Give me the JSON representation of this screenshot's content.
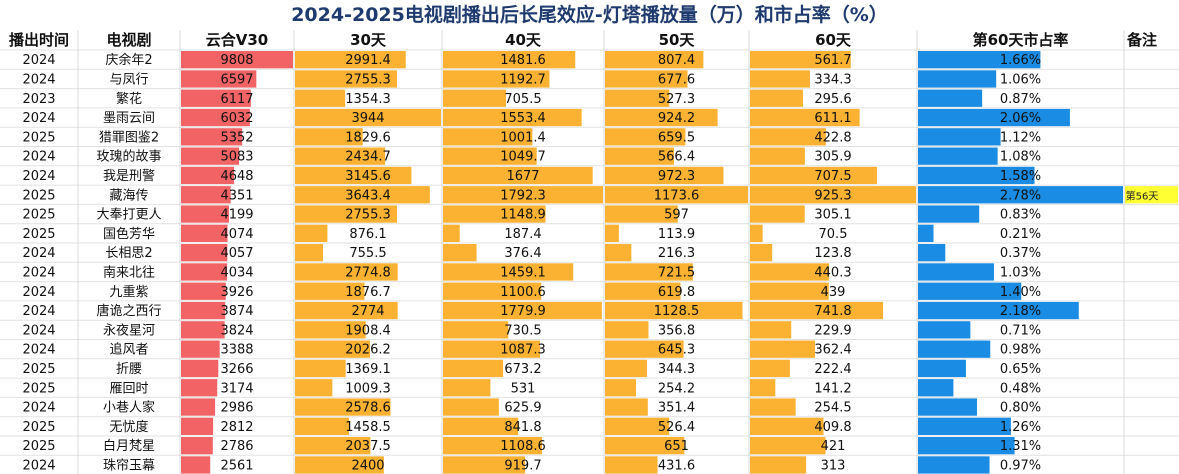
{
  "title": "2024-2025电视剧播出后长尾效应-灯塔播放量（万）和市占率（%）",
  "colors": {
    "v30": "#f26366",
    "views": "#fbb233",
    "share": "#1a8ce3",
    "note_bg": "#ffff33",
    "title": "#1f3a6e"
  },
  "chart_data": {
    "type": "table",
    "columns": [
      "播出时间",
      "电视剧",
      "云合V30",
      "30天",
      "40天",
      "50天",
      "60天",
      "第60天市占率",
      "备注"
    ],
    "rows": [
      {
        "year": "2024",
        "name": "庆余年2",
        "v30": "9808",
        "d30": "2991.4",
        "d40": "1481.6",
        "d50": "807.4",
        "d60": "561.7",
        "share": "1.66%",
        "note": ""
      },
      {
        "year": "2024",
        "name": "与凤行",
        "v30": "6597",
        "d30": "2755.3",
        "d40": "1192.7",
        "d50": "677.6",
        "d60": "334.3",
        "share": "1.06%",
        "note": ""
      },
      {
        "year": "2023",
        "name": "繁花",
        "v30": "6117",
        "d30": "1354.3",
        "d40": "705.5",
        "d50": "527.3",
        "d60": "295.6",
        "share": "0.87%",
        "note": ""
      },
      {
        "year": "2024",
        "name": "墨雨云间",
        "v30": "6032",
        "d30": "3944",
        "d40": "1553.4",
        "d50": "924.2",
        "d60": "611.1",
        "share": "2.06%",
        "note": ""
      },
      {
        "year": "2025",
        "name": "猎罪图鉴2",
        "v30": "5352",
        "d30": "1829.6",
        "d40": "1001.4",
        "d50": "659.5",
        "d60": "422.8",
        "share": "1.12%",
        "note": ""
      },
      {
        "year": "2024",
        "name": "玫瑰的故事",
        "v30": "5083",
        "d30": "2434.7",
        "d40": "1049.7",
        "d50": "566.4",
        "d60": "305.9",
        "share": "1.08%",
        "note": ""
      },
      {
        "year": "2024",
        "name": "我是刑警",
        "v30": "4648",
        "d30": "3145.6",
        "d40": "1677",
        "d50": "972.3",
        "d60": "707.5",
        "share": "1.58%",
        "note": ""
      },
      {
        "year": "2025",
        "name": "藏海传",
        "v30": "4351",
        "d30": "3643.4",
        "d40": "1792.3",
        "d50": "1173.6",
        "d60": "925.3",
        "share": "2.78%",
        "note": "第56天"
      },
      {
        "year": "2025",
        "name": "大奉打更人",
        "v30": "4199",
        "d30": "2755.3",
        "d40": "1148.9",
        "d50": "597",
        "d60": "305.1",
        "share": "0.83%",
        "note": ""
      },
      {
        "year": "2025",
        "name": "国色芳华",
        "v30": "4074",
        "d30": "876.1",
        "d40": "187.4",
        "d50": "113.9",
        "d60": "70.5",
        "share": "0.21%",
        "note": ""
      },
      {
        "year": "2024",
        "name": "长相思2",
        "v30": "4057",
        "d30": "755.5",
        "d40": "376.4",
        "d50": "216.3",
        "d60": "123.8",
        "share": "0.37%",
        "note": ""
      },
      {
        "year": "2024",
        "name": "南来北往",
        "v30": "4034",
        "d30": "2774.8",
        "d40": "1459.1",
        "d50": "721.5",
        "d60": "440.3",
        "share": "1.03%",
        "note": ""
      },
      {
        "year": "2024",
        "name": "九重紫",
        "v30": "3926",
        "d30": "1876.7",
        "d40": "1100.6",
        "d50": "619.8",
        "d60": "439",
        "share": "1.40%",
        "note": ""
      },
      {
        "year": "2024",
        "name": "唐诡之西行",
        "v30": "3874",
        "d30": "2774",
        "d40": "1779.9",
        "d50": "1128.5",
        "d60": "741.8",
        "share": "2.18%",
        "note": ""
      },
      {
        "year": "2024",
        "name": "永夜星河",
        "v30": "3824",
        "d30": "1908.4",
        "d40": "730.5",
        "d50": "356.8",
        "d60": "229.9",
        "share": "0.71%",
        "note": ""
      },
      {
        "year": "2024",
        "name": "追风者",
        "v30": "3388",
        "d30": "2026.2",
        "d40": "1087.3",
        "d50": "645.3",
        "d60": "362.4",
        "share": "0.98%",
        "note": ""
      },
      {
        "year": "2025",
        "name": "折腰",
        "v30": "3266",
        "d30": "1369.1",
        "d40": "673.2",
        "d50": "344.3",
        "d60": "222.4",
        "share": "0.65%",
        "note": ""
      },
      {
        "year": "2025",
        "name": "雁回时",
        "v30": "3174",
        "d30": "1009.3",
        "d40": "531",
        "d50": "254.2",
        "d60": "141.2",
        "share": "0.48%",
        "note": ""
      },
      {
        "year": "2024",
        "name": "小巷人家",
        "v30": "2986",
        "d30": "2578.6",
        "d40": "625.9",
        "d50": "351.4",
        "d60": "254.5",
        "share": "0.80%",
        "note": ""
      },
      {
        "year": "2025",
        "name": "无忧度",
        "v30": "2812",
        "d30": "1458.5",
        "d40": "841.8",
        "d50": "526.4",
        "d60": "409.8",
        "share": "1.26%",
        "note": ""
      },
      {
        "year": "2025",
        "name": "白月梵星",
        "v30": "2786",
        "d30": "2037.5",
        "d40": "1108.6",
        "d50": "651",
        "d60": "421",
        "share": "1.31%",
        "note": ""
      },
      {
        "year": "2024",
        "name": "珠帘玉幕",
        "v30": "2561",
        "d30": "2400",
        "d40": "919.7",
        "d50": "431.6",
        "d60": "313",
        "share": "0.97%",
        "note": ""
      }
    ]
  }
}
